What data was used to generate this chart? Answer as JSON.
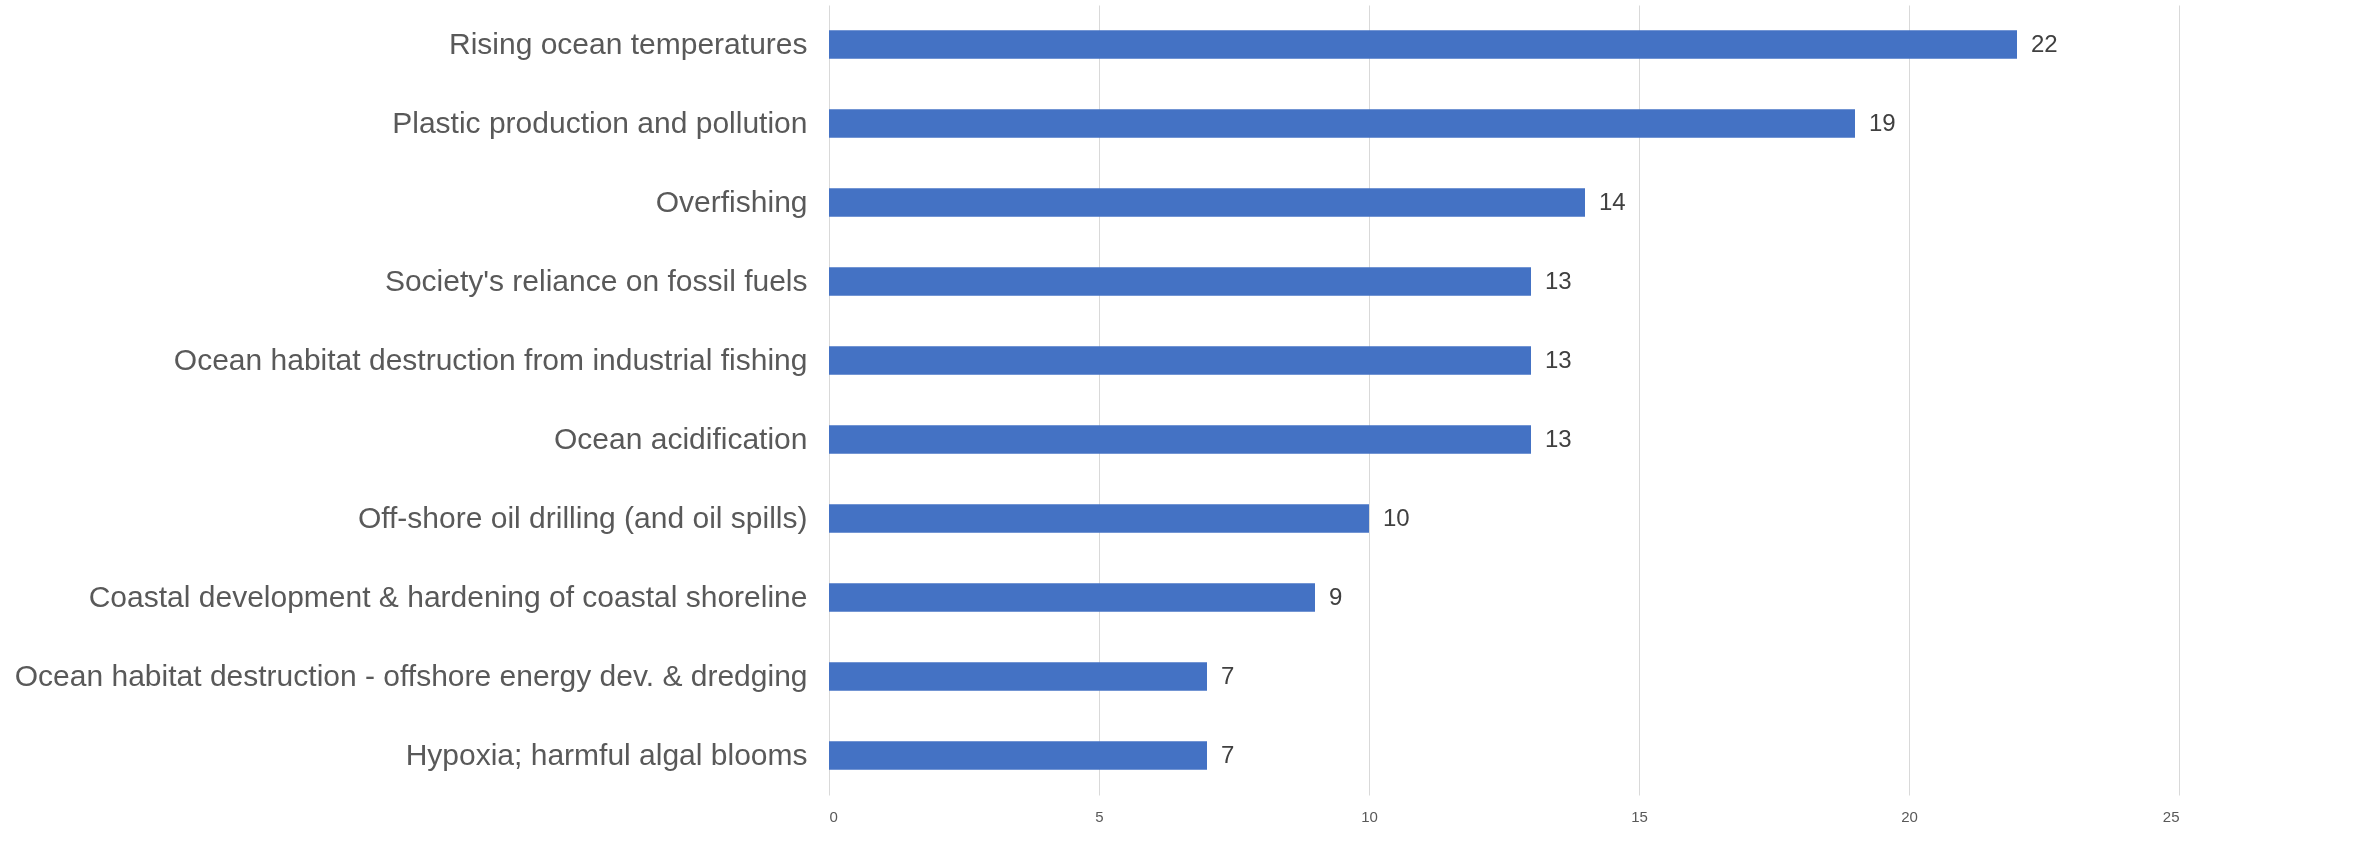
{
  "chart_data": {
    "type": "bar",
    "orientation": "horizontal",
    "categories": [
      "Rising ocean temperatures",
      "Plastic production and pollution",
      "Overfishing",
      "Society's reliance on fossil fuels",
      "Ocean habitat destruction from industrial fishing",
      "Ocean acidification",
      "Off-shore oil drilling (and oil spills)",
      "Coastal development & hardening of coastal shoreline",
      "Ocean habitat destruction -  offshore energy dev. & dredging",
      "Hypoxia; harmful algal blooms"
    ],
    "values": [
      22,
      19,
      14,
      13,
      13,
      13,
      10,
      9,
      7,
      7
    ],
    "color": "#4472c4",
    "xlim": [
      0,
      25
    ],
    "xticks": [
      0,
      5,
      10,
      15,
      20,
      25
    ],
    "grid": "x",
    "data_labels": true
  }
}
